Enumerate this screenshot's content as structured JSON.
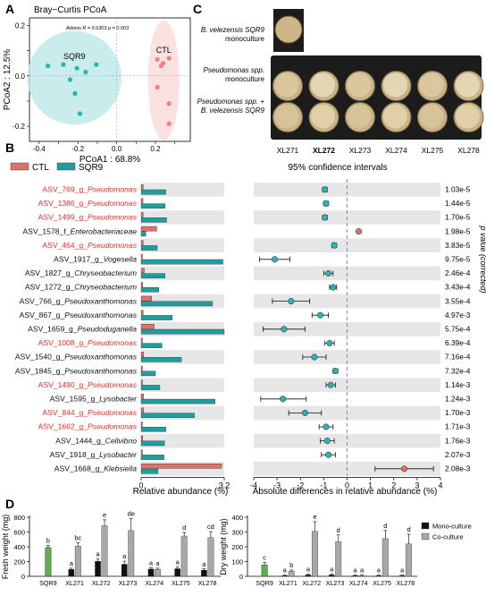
{
  "panels": {
    "A": {
      "letter": "A",
      "title": "Bray−Curtis PCoA",
      "stats": "Adonis R = 0.6303  p = 0.003",
      "chart_data": {
        "type": "scatter",
        "xlabel": "PCoA1 : 68.8%",
        "ylabel": "PCoA2 : 12.5%",
        "xlim": [
          -0.45,
          0.38
        ],
        "ylim": [
          -0.26,
          0.23
        ],
        "xticks": [
          -0.4,
          -0.3,
          -0.2,
          -0.1,
          0.0,
          0.1,
          0.2,
          0.3
        ],
        "xtick_labels": [
          "-0.4",
          "",
          "-0.2",
          "",
          "0.0",
          "",
          "0.2",
          ""
        ],
        "yticks": [
          0.2,
          0.1,
          0.0,
          -0.1,
          -0.2
        ],
        "ytick_labels": [
          "0.2",
          "",
          "0.0",
          "",
          "-0.2"
        ],
        "series": [
          {
            "name": "SQR9",
            "color": "#26b5b5",
            "ellipse_color": "#bfe9ea",
            "points": [
              [
                -0.355,
                0.04
              ],
              [
                -0.275,
                0.045
              ],
              [
                -0.205,
                0.03
              ],
              [
                -0.24,
                -0.015
              ],
              [
                -0.16,
                0.015
              ],
              [
                -0.105,
                0.045
              ],
              [
                -0.215,
                -0.07
              ],
              [
                -0.19,
                -0.15
              ]
            ]
          },
          {
            "name": "CTL",
            "color": "#f08080",
            "ellipse_color": "#fbdcdc",
            "points": [
              [
                0.21,
                0.065
              ],
              [
                0.24,
                0.05
              ],
              [
                0.27,
                0.07
              ],
              [
                0.23,
                0.04
              ],
              [
                0.21,
                -0.045
              ],
              [
                0.27,
                -0.11
              ],
              [
                0.27,
                -0.19
              ]
            ]
          }
        ]
      }
    },
    "C": {
      "letter": "C",
      "rows": [
        "B. velezensis SQR9\nmonoculture",
        "Pseudomonas spp.\nmonoculture",
        "Pseudomonas spp. +\nB. velezensis SQR9"
      ],
      "strains": [
        "XL271",
        "XL272",
        "XL273",
        "XL274",
        "XL275",
        "XL278"
      ],
      "bold_strain": "XL272"
    },
    "B": {
      "letter": "B",
      "legend": [
        {
          "name": "CTL",
          "color": "#e0706a"
        },
        {
          "name": "SQR9",
          "color": "#1f9e9e"
        }
      ],
      "ci_title": "95% confidence intervals",
      "left_xlabel": "Relative abundance (%)",
      "right_xlabel": "Absolute differences in relative abundance (%)",
      "pvalue_label": "p value (corrected)",
      "left_xticks": [
        "0",
        "3.2"
      ],
      "right_xticks": [
        "-4",
        "-3",
        "-2",
        "-1",
        "0",
        "1",
        "2",
        "3",
        "4"
      ],
      "chart_data": {
        "type": "bar",
        "xlim_abundance": [
          0,
          3.2
        ],
        "xlim_difference": [
          -4,
          4
        ],
        "taxa": [
          {
            "id": "ASV_769_g_",
            "genus": "Pseudomonas",
            "red": true,
            "ctl": 0.08,
            "sqr9": 0.95,
            "diff": -0.95,
            "lo": -1.05,
            "hi": -0.85,
            "p": "1.03e-5",
            "dir": "SQR9"
          },
          {
            "id": "ASV_1386_g_",
            "genus": "Pseudomonas",
            "red": true,
            "ctl": 0.07,
            "sqr9": 0.92,
            "diff": -0.9,
            "lo": -1.0,
            "hi": -0.8,
            "p": "1.44e-5",
            "dir": "SQR9"
          },
          {
            "id": "ASV_1499_g_",
            "genus": "Pseudomonas",
            "red": true,
            "ctl": 0.08,
            "sqr9": 0.98,
            "diff": -0.95,
            "lo": -1.05,
            "hi": -0.85,
            "p": "1.70e-5",
            "dir": "SQR9"
          },
          {
            "id": "ASV_1578_f_",
            "genus": "Enterobacteriaceae",
            "red": false,
            "ctl": 0.6,
            "sqr9": 0.18,
            "diff": 0.5,
            "lo": 0.44,
            "hi": 0.56,
            "p": "1.98e-5",
            "dir": "CTL"
          },
          {
            "id": "ASV_464_g_",
            "genus": "Pseudomonas",
            "red": true,
            "ctl": 0.08,
            "sqr9": 0.62,
            "diff": -0.55,
            "lo": -0.65,
            "hi": -0.45,
            "p": "3.83e-5",
            "dir": "SQR9"
          },
          {
            "id": "ASV_1917_g_",
            "genus": "Vogesella",
            "red": false,
            "ctl": 0.05,
            "sqr9": 3.15,
            "diff": -3.1,
            "lo": -3.75,
            "hi": -2.45,
            "p": "9.75e-5",
            "dir": "SQR9"
          },
          {
            "id": "ASV_1827_g_",
            "genus": "Chryseobacterium",
            "red": false,
            "ctl": 0.12,
            "sqr9": 0.92,
            "diff": -0.8,
            "lo": -1.0,
            "hi": -0.6,
            "p": "2.46e-4",
            "dir": "SQR9"
          },
          {
            "id": "ASV_1272_g_",
            "genus": "Chryseobacterium",
            "red": false,
            "ctl": 0.06,
            "sqr9": 0.68,
            "diff": -0.6,
            "lo": -0.75,
            "hi": -0.45,
            "p": "3.43e-4",
            "dir": "SQR9"
          },
          {
            "id": "ASV_766_g_",
            "genus": "Pseudoxanthomonas",
            "red": false,
            "ctl": 0.4,
            "sqr9": 2.75,
            "diff": -2.4,
            "lo": -3.2,
            "hi": -1.6,
            "p": "3.55e-4",
            "dir": "SQR9"
          },
          {
            "id": "ASV_867_g_",
            "genus": "Pseudoxanthomonas",
            "red": false,
            "ctl": 0.08,
            "sqr9": 1.2,
            "diff": -1.15,
            "lo": -1.5,
            "hi": -0.8,
            "p": "4.97e-3",
            "dir": "SQR9"
          },
          {
            "id": "ASV_1659_g_",
            "genus": "Pseudoduganella",
            "red": false,
            "ctl": 0.5,
            "sqr9": 3.2,
            "diff": -2.7,
            "lo": -3.6,
            "hi": -1.8,
            "p": "5.75e-4",
            "dir": "SQR9"
          },
          {
            "id": "ASV_1008_g_",
            "genus": "Pseudomonas",
            "red": true,
            "ctl": 0.05,
            "sqr9": 0.8,
            "diff": -0.75,
            "lo": -0.95,
            "hi": -0.55,
            "p": "6.39e-4",
            "dir": "SQR9"
          },
          {
            "id": "ASV_1540_g_",
            "genus": "Pseudoxanthomonas",
            "red": false,
            "ctl": 0.1,
            "sqr9": 1.55,
            "diff": -1.4,
            "lo": -1.9,
            "hi": -0.9,
            "p": "7.16e-4",
            "dir": "SQR9"
          },
          {
            "id": "ASV_1845_g_",
            "genus": "Pseudoxanthomonas",
            "red": false,
            "ctl": 0.05,
            "sqr9": 0.55,
            "diff": -0.5,
            "lo": -0.6,
            "hi": -0.4,
            "p": "7.32e-4",
            "dir": "SQR9"
          },
          {
            "id": "ASV_1490_g_",
            "genus": "Pseudomonas",
            "red": true,
            "ctl": 0.05,
            "sqr9": 0.72,
            "diff": -0.7,
            "lo": -0.9,
            "hi": -0.5,
            "p": "1.14e-3",
            "dir": "SQR9"
          },
          {
            "id": "ASV_1595_g_",
            "genus": "Lysobacter",
            "red": false,
            "ctl": 0.1,
            "sqr9": 2.85,
            "diff": -2.75,
            "lo": -3.7,
            "hi": -1.75,
            "p": "1.24e-3",
            "dir": "SQR9"
          },
          {
            "id": "ASV_844_g_",
            "genus": "Pseudomonas",
            "red": true,
            "ctl": 0.1,
            "sqr9": 2.05,
            "diff": -1.8,
            "lo": -2.5,
            "hi": -1.1,
            "p": "1.70e-3",
            "dir": "SQR9"
          },
          {
            "id": "ASV_1662_g_",
            "genus": "Pseudomonas",
            "red": true,
            "ctl": 0.05,
            "sqr9": 0.95,
            "diff": -0.9,
            "lo": -1.2,
            "hi": -0.6,
            "p": "1.71e-3",
            "dir": "SQR9"
          },
          {
            "id": "ASV_1444_g_",
            "genus": "Cellvibrio",
            "red": false,
            "ctl": 0.06,
            "sqr9": 0.9,
            "diff": -0.85,
            "lo": -1.15,
            "hi": -0.55,
            "p": "1.76e-3",
            "dir": "SQR9"
          },
          {
            "id": "ASV_1918_g_",
            "genus": "Lysobacter",
            "red": false,
            "ctl": 0.05,
            "sqr9": 0.88,
            "diff": -0.8,
            "lo": -1.1,
            "hi": -0.5,
            "p": "2.07e-3",
            "dir": "SQR9"
          },
          {
            "id": "ASV_1668_g_",
            "genus": "Klebsiella",
            "red": false,
            "ctl": 3.1,
            "sqr9": 0.65,
            "diff": 2.45,
            "lo": 1.2,
            "hi": 3.7,
            "p": "2.08e-3",
            "dir": "CTL"
          }
        ]
      }
    },
    "D": {
      "letter": "D",
      "legend": [
        {
          "name": "Mono-culture",
          "color": "#111111"
        },
        {
          "name": "Co-culture",
          "color": "#a8a8a8"
        }
      ],
      "charts": [
        {
          "type": "bar",
          "ylabel": "Fresh weight (mg)",
          "ylim": [
            0,
            800
          ],
          "yticks": [
            0,
            200,
            400,
            600,
            800
          ],
          "categories": [
            "SQR9",
            "XL271",
            "XL272",
            "XL273",
            "XL274",
            "XL275",
            "XL278"
          ],
          "sqr9": {
            "value": 390,
            "err": 30,
            "letter": "b",
            "color": "#5fb04a"
          },
          "mono": [
            null,
            95,
            205,
            165,
            100,
            105,
            85
          ],
          "mono_err": [
            null,
            15,
            30,
            40,
            15,
            20,
            15
          ],
          "mono_letters": [
            null,
            "a",
            "a",
            "a",
            "a",
            "a",
            "a"
          ],
          "co": [
            null,
            410,
            685,
            620,
            95,
            545,
            525
          ],
          "co_err": [
            null,
            45,
            80,
            160,
            15,
            50,
            80
          ],
          "co_letters": [
            null,
            "bc",
            "e",
            "de",
            "a",
            "d",
            "cd"
          ]
        },
        {
          "type": "bar",
          "ylabel": "Dry weight (mg)",
          "ylim": [
            0,
            400
          ],
          "yticks": [
            0,
            100,
            200,
            300,
            400
          ],
          "categories": [
            "SQR9",
            "XL271",
            "XL272",
            "XL273",
            "XL274",
            "XL275",
            "XL278"
          ],
          "sqr9": {
            "value": 78,
            "err": 15,
            "letter": "c",
            "color": "#5fb04a"
          },
          "mono": [
            null,
            5,
            10,
            10,
            5,
            5,
            5
          ],
          "mono_err": [
            null,
            3,
            5,
            5,
            3,
            3,
            3
          ],
          "mono_letters": [
            null,
            "a",
            "a",
            "a",
            "a",
            "a",
            "a"
          ],
          "co": [
            null,
            35,
            305,
            235,
            5,
            255,
            220
          ],
          "co_err": [
            null,
            8,
            65,
            45,
            3,
            55,
            65
          ],
          "co_letters": [
            null,
            "b",
            "e",
            "d",
            "a",
            "d",
            "d"
          ]
        }
      ]
    }
  }
}
